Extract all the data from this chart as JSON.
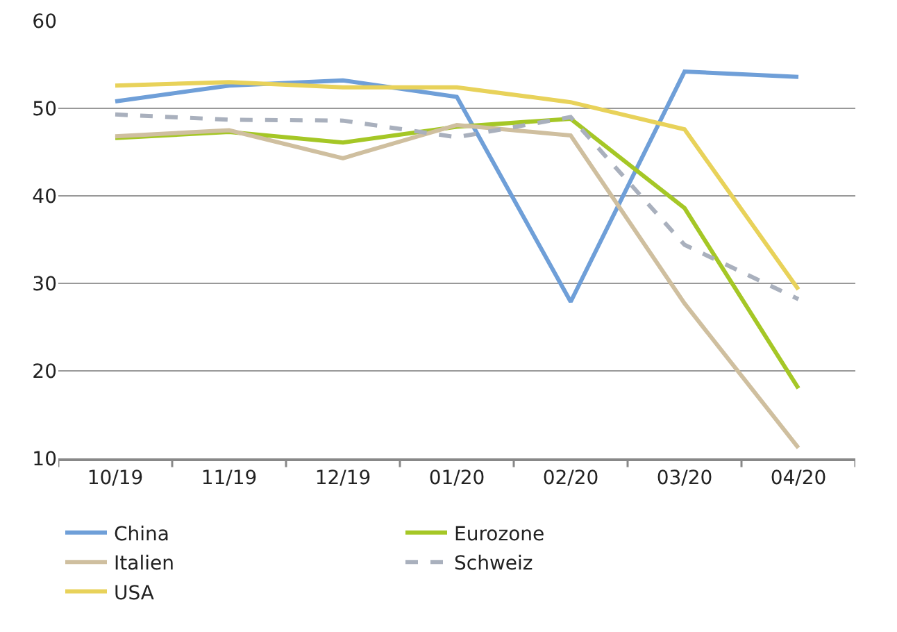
{
  "chart_data": {
    "type": "line",
    "categories": [
      "10/19",
      "11/19",
      "12/19",
      "01/20",
      "02/20",
      "03/20",
      "04/20"
    ],
    "ylim": [
      10,
      60
    ],
    "yticks": [
      10,
      20,
      30,
      40,
      50,
      60
    ],
    "grid": "y",
    "legend": "bottom",
    "marker": "none",
    "series": [
      {
        "name": "China",
        "color": "#6f9fd8",
        "values": [
          50.8,
          52.6,
          53.2,
          51.3,
          27.9,
          54.2,
          53.6
        ]
      },
      {
        "name": "Eurozone",
        "color": "#a5c726",
        "values": [
          46.6,
          47.3,
          46.1,
          47.9,
          48.8,
          38.6,
          18.0
        ]
      },
      {
        "name": "Italien",
        "color": "#cfbf9f",
        "values": [
          46.8,
          47.5,
          44.3,
          48.1,
          46.9,
          27.7,
          11.2
        ]
      },
      {
        "name": "Schweiz",
        "color": "#a9b0bd",
        "line_style": "dashed",
        "values": [
          49.3,
          48.7,
          48.6,
          46.7,
          49.0,
          34.4,
          28.2
        ]
      },
      {
        "name": "USA",
        "color": "#e8d25a",
        "values": [
          52.6,
          53.0,
          52.4,
          52.4,
          50.7,
          47.6,
          29.3
        ]
      }
    ]
  }
}
